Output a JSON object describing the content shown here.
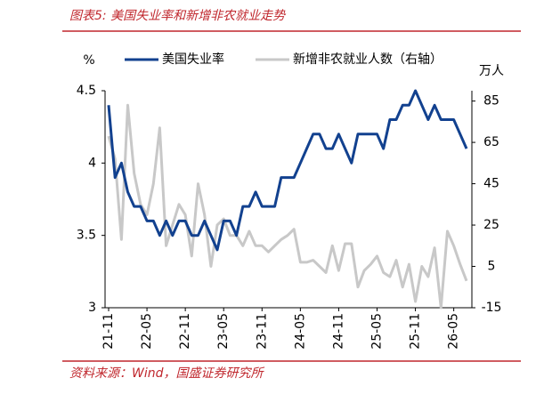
{
  "chart_data": {
    "type": "line",
    "title": "图表5: 美国失业率和新增非农就业走势",
    "source": "资料来源：Wind，国盛证券研究所",
    "y_unit": "%",
    "y2_unit": "万人",
    "categories": [
      "21-11",
      null,
      null,
      null,
      null,
      null,
      "22-05",
      null,
      null,
      null,
      null,
      null,
      "22-11",
      null,
      null,
      null,
      null,
      null,
      "23-05",
      null,
      null,
      null,
      null,
      null,
      "23-11",
      null,
      null,
      null,
      null,
      null,
      "24-05",
      null,
      null,
      null,
      null,
      null,
      "24-11",
      null,
      null,
      null,
      null,
      null,
      "25-05",
      null,
      null,
      null,
      null,
      null,
      "25-11",
      null,
      null,
      null,
      null,
      null,
      "26-05",
      null,
      null
    ],
    "series": [
      {
        "name": "美国失业率",
        "color": "#12418f",
        "axis": "y",
        "values": [
          4.4,
          3.9,
          4.0,
          3.8,
          3.7,
          3.7,
          3.6,
          3.6,
          3.5,
          3.6,
          3.5,
          3.6,
          3.6,
          3.5,
          3.5,
          3.6,
          3.5,
          3.4,
          3.6,
          3.6,
          3.5,
          3.7,
          3.7,
          3.8,
          3.7,
          3.7,
          3.7,
          3.9,
          3.9,
          3.9,
          4.0,
          4.1,
          4.2,
          4.2,
          4.1,
          4.1,
          4.2,
          4.1,
          4.0,
          4.2,
          4.2,
          4.2,
          4.2,
          4.1,
          4.3,
          4.3,
          4.4,
          4.4,
          4.5,
          4.4,
          4.3,
          4.4,
          4.3,
          4.3,
          4.3,
          4.2,
          4.1
        ]
      },
      {
        "name": "新增非农就业人数（右轴）",
        "color": "#c8c8c8",
        "axis": "y2",
        "values": [
          68,
          57,
          18,
          83,
          50,
          35,
          30,
          45,
          72,
          15,
          25,
          35,
          30,
          10,
          45,
          30,
          5,
          25,
          28,
          20,
          20,
          15,
          22,
          15,
          15,
          12,
          15,
          18,
          20,
          23,
          7,
          7,
          8,
          5,
          2,
          15,
          3,
          16,
          16,
          -5,
          3,
          6,
          10,
          2,
          0,
          8,
          -5,
          6,
          -12,
          5,
          0,
          14,
          -15,
          22,
          15,
          6,
          -2
        ]
      }
    ],
    "ylim": [
      3,
      4.5
    ],
    "yticks": [
      3,
      3.5,
      4,
      4.5
    ],
    "y2lim": [
      -15,
      90
    ],
    "y2ticks": [
      -15,
      5,
      25,
      45,
      65,
      85
    ]
  }
}
